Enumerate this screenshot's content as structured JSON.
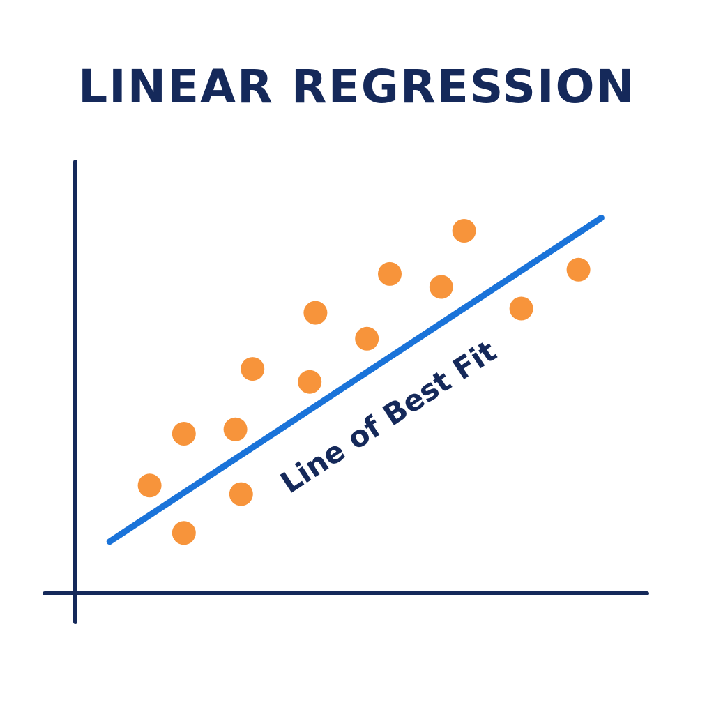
{
  "chart_data": {
    "type": "scatter",
    "title": "LINEAR REGRESSION",
    "xlabel": "",
    "ylabel": "",
    "xlim": [
      0,
      10
    ],
    "ylim": [
      0,
      10
    ],
    "grid": false,
    "legend": "none",
    "points": [
      {
        "x": 1.3,
        "y": 2.5
      },
      {
        "x": 1.9,
        "y": 1.4
      },
      {
        "x": 1.9,
        "y": 3.7
      },
      {
        "x": 2.8,
        "y": 3.8
      },
      {
        "x": 2.9,
        "y": 2.3
      },
      {
        "x": 3.1,
        "y": 5.2
      },
      {
        "x": 4.1,
        "y": 4.9
      },
      {
        "x": 4.2,
        "y": 6.5
      },
      {
        "x": 5.1,
        "y": 5.9
      },
      {
        "x": 5.5,
        "y": 7.4
      },
      {
        "x": 6.4,
        "y": 7.1
      },
      {
        "x": 6.8,
        "y": 8.4
      },
      {
        "x": 7.8,
        "y": 6.6
      },
      {
        "x": 8.8,
        "y": 7.5
      }
    ],
    "fit_line": {
      "x": [
        0.6,
        9.2
      ],
      "y": [
        1.2,
        8.7
      ]
    },
    "annotation": "Line of Best Fit",
    "colors": {
      "title": "#15295a",
      "axis": "#15295a",
      "points": "#f7943b",
      "line": "#1a73d9",
      "annotation": "#15295a"
    }
  }
}
